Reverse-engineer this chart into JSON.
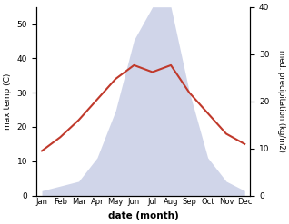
{
  "months": [
    "Jan",
    "Feb",
    "Mar",
    "Apr",
    "May",
    "Jun",
    "Jul",
    "Aug",
    "Sep",
    "Oct",
    "Nov",
    "Dec"
  ],
  "temperature": [
    13,
    17,
    22,
    28,
    34,
    38,
    36,
    38,
    30,
    24,
    18,
    15
  ],
  "precipitation": [
    1,
    2,
    3,
    8,
    18,
    33,
    40,
    40,
    22,
    8,
    3,
    1
  ],
  "temp_color": "#c0392b",
  "precip_color": "#aab4d8",
  "temp_ylim": [
    0,
    55
  ],
  "precip_ylim": [
    0,
    40
  ],
  "temp_yticks": [
    0,
    10,
    20,
    30,
    40,
    50
  ],
  "precip_yticks": [
    0,
    10,
    20,
    30,
    40
  ],
  "ylabel_left": "max temp (C)",
  "ylabel_right": "med. precipitation (kg/m2)",
  "xlabel": "date (month)",
  "background_color": "#ffffff",
  "temp_linewidth": 1.5,
  "precip_alpha": 0.55
}
